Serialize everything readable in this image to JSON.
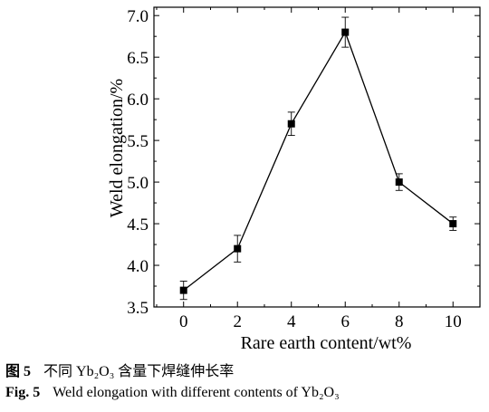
{
  "chart_data": {
    "type": "line",
    "xlabel": "Rare earth content/wt%",
    "ylabel": "Weld elongation/%",
    "x": [
      0,
      2,
      4,
      6,
      8,
      10
    ],
    "series": [
      {
        "values": [
          3.7,
          4.2,
          5.7,
          6.8,
          5.0,
          4.5
        ],
        "errors": [
          0.11,
          0.16,
          0.14,
          0.18,
          0.1,
          0.08
        ]
      }
    ],
    "xlim": [
      -1.1,
      11.0
    ],
    "ylim": [
      3.5,
      7.1
    ],
    "xticks": [
      0,
      2,
      4,
      6,
      8,
      10
    ],
    "xtick_labels": [
      "0",
      "2",
      "4",
      "6",
      "8",
      "10"
    ],
    "yticks": [
      3.5,
      4.0,
      4.5,
      5.0,
      5.5,
      6.0,
      6.5,
      7.0
    ],
    "ytick_labels": [
      "3.5",
      "4.0",
      "4.5",
      "5.0",
      "5.5",
      "6.0",
      "6.5",
      "7.0"
    ],
    "grid": false,
    "marker": "square"
  },
  "caption": {
    "zh_number": "图 5",
    "zh_text": "不同 Yb₂O₃ 含量下焊缝伸长率",
    "en_number": "Fig. 5",
    "en_text": "Weld elongation with different contents of Yb₂O₃"
  }
}
